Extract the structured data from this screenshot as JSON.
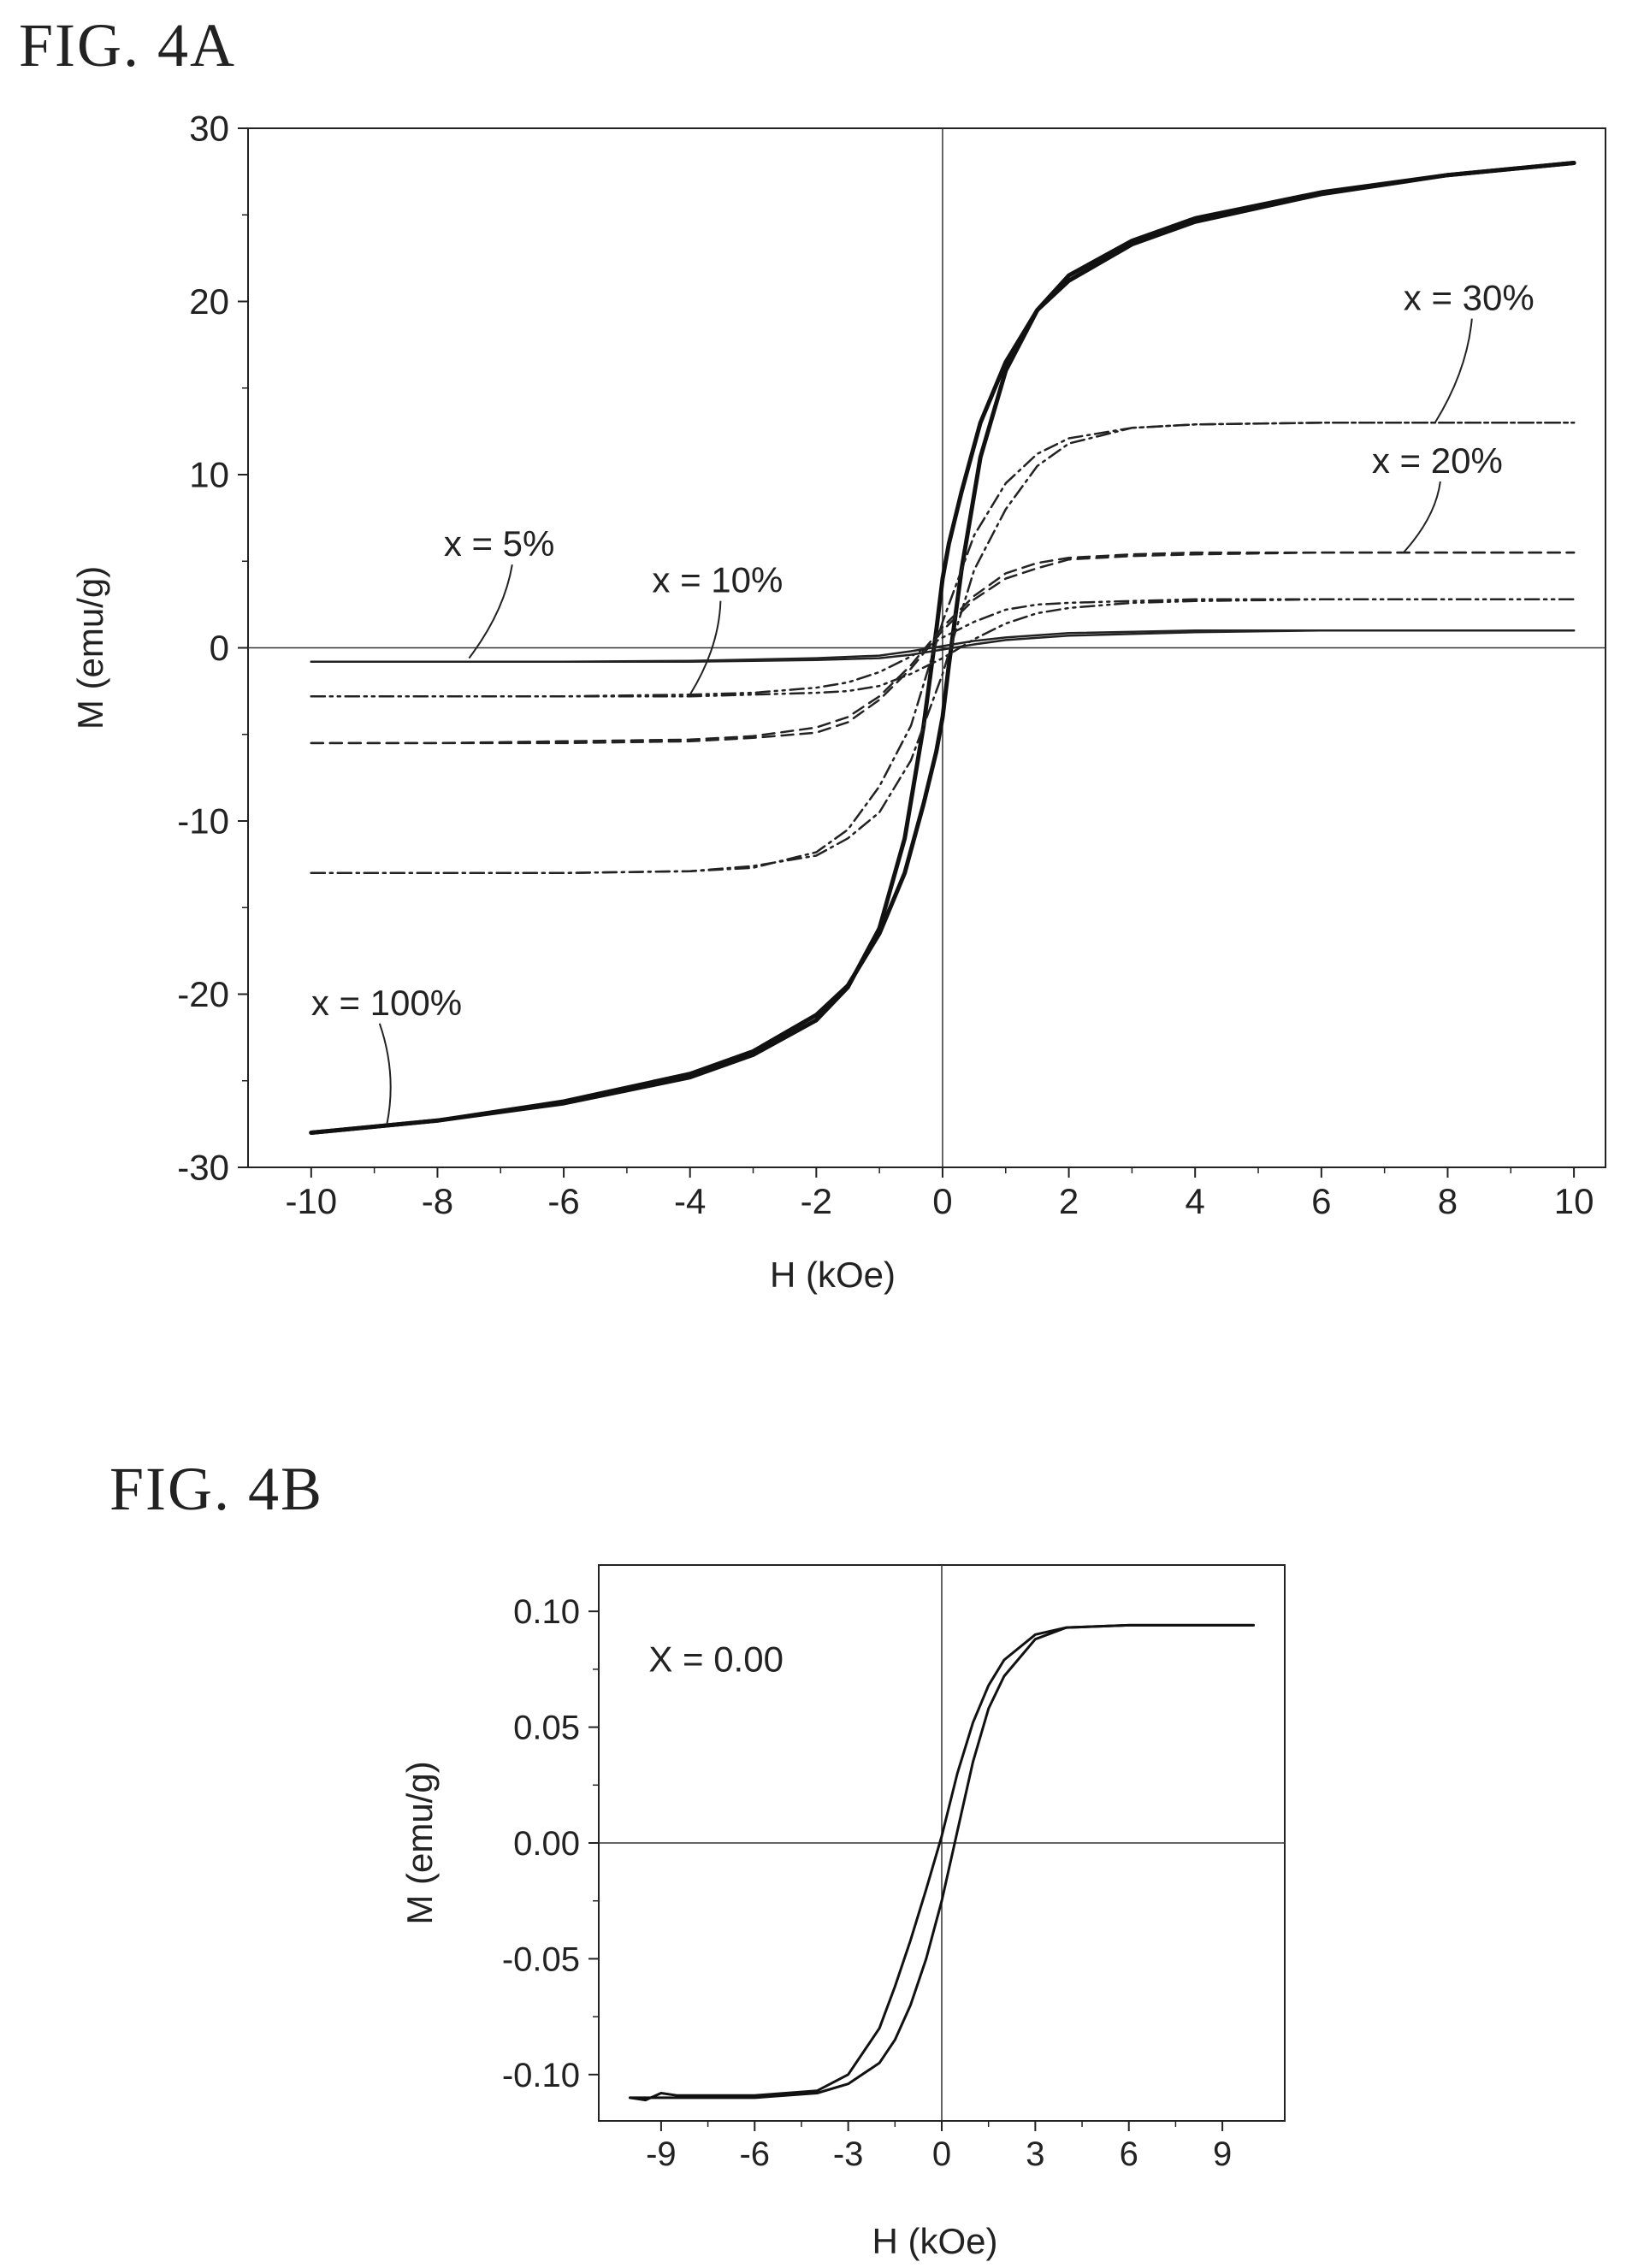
{
  "figures": [
    {
      "label": "FIG. 4A"
    },
    {
      "label": "FIG. 4B"
    }
  ],
  "chart_data": [
    {
      "type": "line",
      "xlabel": "H (kOe)",
      "ylabel": "M (emu/g)",
      "xlim": [
        -11,
        10.5
      ],
      "ylim": [
        -30,
        30
      ],
      "xticks": [
        -10,
        -8,
        -6,
        -4,
        -2,
        0,
        2,
        4,
        6,
        8,
        10
      ],
      "yticks": [
        -30,
        -20,
        -10,
        0,
        10,
        20,
        30
      ],
      "grid": false,
      "zero_lines": true,
      "series": [
        {
          "name": "x = 100%",
          "color": "#111111",
          "style": "solid",
          "width": 5,
          "upper": {
            "x": [
              -10,
              -8,
              -6,
              -4,
              -3,
              -2,
              -1.5,
              -1,
              -0.6,
              -0.3,
              -0.1,
              0,
              0.1,
              0.3,
              0.6,
              1,
              1.5,
              2,
              3,
              4,
              6,
              8,
              10
            ],
            "y": [
              -28,
              -27.3,
              -26.2,
              -24.6,
              -23.3,
              -21.2,
              -19.5,
              -16.5,
              -13,
              -9,
              -6,
              -4,
              -1,
              4.5,
              11,
              16,
              19.5,
              21.5,
              23.5,
              24.8,
              26.3,
              27.3,
              28
            ]
          },
          "lower": {
            "x": [
              -10,
              -8,
              -6,
              -4,
              -3,
              -2,
              -1.5,
              -1,
              -0.6,
              -0.3,
              -0.1,
              0,
              0.1,
              0.3,
              0.6,
              1,
              1.5,
              2,
              3,
              4,
              6,
              8,
              10
            ],
            "y": [
              -28,
              -27.3,
              -26.3,
              -24.8,
              -23.5,
              -21.5,
              -19.6,
              -16.2,
              -11,
              -4.5,
              1,
              4,
              6,
              9,
              13,
              16.5,
              19.5,
              21.2,
              23.3,
              24.6,
              26.2,
              27.3,
              28
            ]
          }
        },
        {
          "name": "x = 30%",
          "color": "#222222",
          "style": "dashdot",
          "width": 2.5,
          "upper": {
            "x": [
              -10,
              -8,
              -6,
              -4,
              -3,
              -2,
              -1.5,
              -1,
              -0.5,
              0,
              0.5,
              1,
              1.5,
              2,
              3,
              4,
              6,
              8,
              10
            ],
            "y": [
              -13,
              -13,
              -13,
              -12.9,
              -12.7,
              -11.8,
              -10.5,
              -8,
              -4.5,
              1.5,
              6.5,
              9.5,
              11.2,
              12.1,
              12.7,
              12.9,
              13,
              13,
              13
            ]
          },
          "lower": {
            "x": [
              -10,
              -8,
              -6,
              -4,
              -3,
              -2,
              -1.5,
              -1,
              -0.5,
              0,
              0.5,
              1,
              1.5,
              2,
              3,
              4,
              6,
              8,
              10
            ],
            "y": [
              -13,
              -13,
              -13,
              -12.9,
              -12.6,
              -12,
              -11,
              -9.5,
              -6.5,
              -1.5,
              4.5,
              8,
              10.5,
              11.8,
              12.7,
              12.9,
              13,
              13,
              13
            ]
          }
        },
        {
          "name": "x = 20%",
          "color": "#222222",
          "style": "dashed",
          "width": 2.5,
          "upper": {
            "x": [
              -10,
              -8,
              -6,
              -4,
              -3,
              -2,
              -1.5,
              -1,
              -0.5,
              0,
              0.5,
              1,
              1.5,
              2,
              3,
              4,
              6,
              8,
              10
            ],
            "y": [
              -5.5,
              -5.5,
              -5.4,
              -5.3,
              -5.1,
              -4.6,
              -4,
              -2.8,
              -1,
              1.2,
              3,
              4.3,
              4.9,
              5.2,
              5.4,
              5.5,
              5.5,
              5.5,
              5.5
            ]
          },
          "lower": {
            "x": [
              -10,
              -8,
              -6,
              -4,
              -3,
              -2,
              -1.5,
              -1,
              -0.5,
              0,
              0.5,
              1,
              1.5,
              2,
              3,
              4,
              6,
              8,
              10
            ],
            "y": [
              -5.5,
              -5.5,
              -5.5,
              -5.4,
              -5.2,
              -4.9,
              -4.3,
              -3,
              -1.2,
              1,
              2.8,
              4,
              4.6,
              5.1,
              5.3,
              5.4,
              5.5,
              5.5,
              5.5
            ]
          }
        },
        {
          "name": "x = 10%",
          "color": "#222222",
          "style": "dashdotdot",
          "width": 2.5,
          "upper": {
            "x": [
              -10,
              -8,
              -6,
              -4,
              -3,
              -2,
              -1.5,
              -1,
              -0.5,
              0,
              0.5,
              1,
              1.5,
              2,
              3,
              4,
              6,
              8,
              10
            ],
            "y": [
              -2.8,
              -2.8,
              -2.8,
              -2.7,
              -2.6,
              -2.3,
              -2,
              -1.4,
              -0.5,
              0.6,
              1.5,
              2.2,
              2.5,
              2.6,
              2.7,
              2.8,
              2.8,
              2.8,
              2.8
            ]
          },
          "lower": {
            "x": [
              -10,
              -8,
              -6,
              -4,
              -3,
              -2,
              -1.5,
              -1,
              -0.5,
              0,
              0.5,
              1,
              1.5,
              2,
              3,
              4,
              6,
              8,
              10
            ],
            "y": [
              -2.8,
              -2.8,
              -2.8,
              -2.8,
              -2.7,
              -2.6,
              -2.5,
              -2.2,
              -1.5,
              -0.6,
              0.5,
              1.4,
              2,
              2.3,
              2.6,
              2.7,
              2.8,
              2.8,
              2.8
            ]
          }
        },
        {
          "name": "x = 5%",
          "color": "#222222",
          "style": "solid",
          "width": 2.5,
          "upper": {
            "x": [
              -10,
              -8,
              -6,
              -4,
              -2,
              -1,
              -0.5,
              0,
              0.5,
              1,
              2,
              4,
              6,
              8,
              10
            ],
            "y": [
              -0.8,
              -0.8,
              -0.8,
              -0.75,
              -0.6,
              -0.45,
              -0.2,
              0.1,
              0.4,
              0.6,
              0.85,
              1,
              1,
              1,
              1
            ]
          },
          "lower": {
            "x": [
              -10,
              -8,
              -6,
              -4,
              -2,
              -1,
              -0.5,
              0,
              0.5,
              1,
              2,
              4,
              6,
              8,
              10
            ],
            "y": [
              -0.8,
              -0.8,
              -0.8,
              -0.8,
              -0.7,
              -0.6,
              -0.4,
              -0.1,
              0.2,
              0.45,
              0.7,
              0.9,
              1,
              1,
              1
            ]
          }
        }
      ],
      "annotations": [
        {
          "text": "x = 30%",
          "x": 7.3,
          "y": 19.5,
          "anchor_x": 7.8,
          "anchor_y": 13
        },
        {
          "text": "x = 20%",
          "x": 6.8,
          "y": 10.1,
          "anchor_x": 7.3,
          "anchor_y": 5.5
        },
        {
          "text": "x = 5%",
          "x": -7.9,
          "y": 5.3,
          "anchor_x": -7.5,
          "anchor_y": -0.6
        },
        {
          "text": "x = 10%",
          "x": -4.6,
          "y": 3.2,
          "anchor_x": -4.0,
          "anchor_y": -2.7
        },
        {
          "text": "x = 100%",
          "x": -10,
          "y": -21.2,
          "anchor_x": -8.8,
          "anchor_y": -27.5
        }
      ]
    },
    {
      "type": "line",
      "xlabel": "H (kOe)",
      "ylabel": "M (emu/g)",
      "xlim": [
        -11,
        11
      ],
      "ylim": [
        -0.12,
        0.12
      ],
      "xticks": [
        -9,
        -6,
        -3,
        0,
        3,
        6,
        9
      ],
      "yticks": [
        0.1,
        0.05,
        0.0,
        -0.05,
        -0.1
      ],
      "ytick_labels": [
        "0.10",
        "0.05",
        "0.00",
        "-0.05",
        "-0.10"
      ],
      "grid": false,
      "zero_lines": true,
      "series": [
        {
          "name": "X = 0.00",
          "color": "#111111",
          "style": "solid",
          "width": 3,
          "upper": {
            "x": [
              -10,
              -9.5,
              -9,
              -8.5,
              -8,
              -6,
              -4,
              -3,
              -2,
              -1.5,
              -1,
              -0.5,
              0,
              0.5,
              1,
              1.5,
              2,
              3,
              4,
              6,
              8,
              10
            ],
            "y": [
              -0.11,
              -0.111,
              -0.108,
              -0.109,
              -0.109,
              -0.109,
              -0.107,
              -0.1,
              -0.08,
              -0.062,
              -0.042,
              -0.02,
              0.003,
              0.03,
              0.052,
              0.068,
              0.079,
              0.09,
              0.093,
              0.094,
              0.094,
              0.094
            ]
          },
          "lower": {
            "x": [
              -10,
              -9,
              -8,
              -6,
              -4,
              -3,
              -2,
              -1.5,
              -1,
              -0.5,
              0,
              0.5,
              1,
              1.5,
              2,
              3,
              4,
              6,
              8,
              10
            ],
            "y": [
              -0.11,
              -0.11,
              -0.11,
              -0.11,
              -0.108,
              -0.104,
              -0.095,
              -0.085,
              -0.07,
              -0.05,
              -0.025,
              0.005,
              0.035,
              0.058,
              0.072,
              0.088,
              0.093,
              0.094,
              0.094,
              0.094
            ]
          }
        }
      ],
      "annotations": [
        {
          "text": "X = 0.00",
          "x": -9.4,
          "y": 0.074
        }
      ]
    }
  ]
}
